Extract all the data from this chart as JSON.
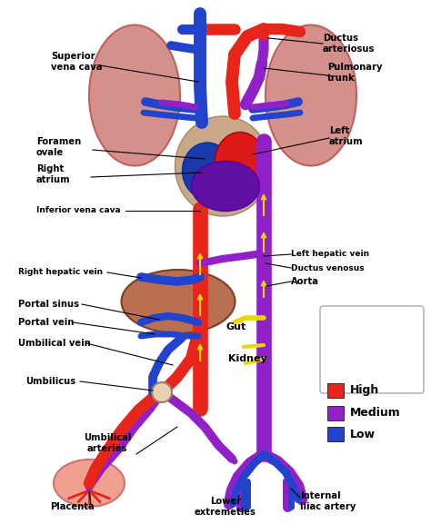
{
  "bg_color": "#ffffff",
  "high_color": "#e8251a",
  "medium_color": "#9020c8",
  "low_color": "#2244cc",
  "yellow": "#e8d800",
  "lung_color": "#d4908a",
  "lung_edge": "#c06060",
  "liver_color": "#b87050",
  "liver_edge": "#7a4020",
  "placenta_color": "#f0a090",
  "placenta_edge": "#d07070",
  "heart_outer": "#9020c8",
  "heart_right": "#1a3aaa",
  "heart_left": "#dd1818",
  "heart_bottom": "#6010a0",
  "umbilicus_color": "#e8d0b0",
  "labels": {
    "superior_vena_cava": "Superior\nvena cava",
    "ductus_arteriosus": "Ductus\narteriosus",
    "pulmonary_trunk": "Pulmonary\ntrunk",
    "foramen_ovale": "Foramen\novale",
    "left_atrium": "Left\natrium",
    "right_atrium": "Right\natrium",
    "inferior_vena_cava": "Inferior vena cava",
    "right_hepatic_vein": "Right hepatic vein",
    "left_hepatic_vein": "Left hepatic vein",
    "ductus_venosus": "Ductus venosus",
    "aorta": "Aorta",
    "portal_sinus": "Portal sinus",
    "portal_vein": "Portal vein",
    "umbilical_vein": "Umbilical vein",
    "umbilicus": "Umbilicus",
    "gut": "Gut",
    "kidney": "Kidney",
    "umbilical_arteries": "Umbilical\narteries",
    "lower_extremities": "Lower\nextremeties",
    "internal_iliac": "Internal\niliac artery",
    "placenta": "Placenta",
    "high": "High",
    "medium": "Medium",
    "low": "Low"
  }
}
